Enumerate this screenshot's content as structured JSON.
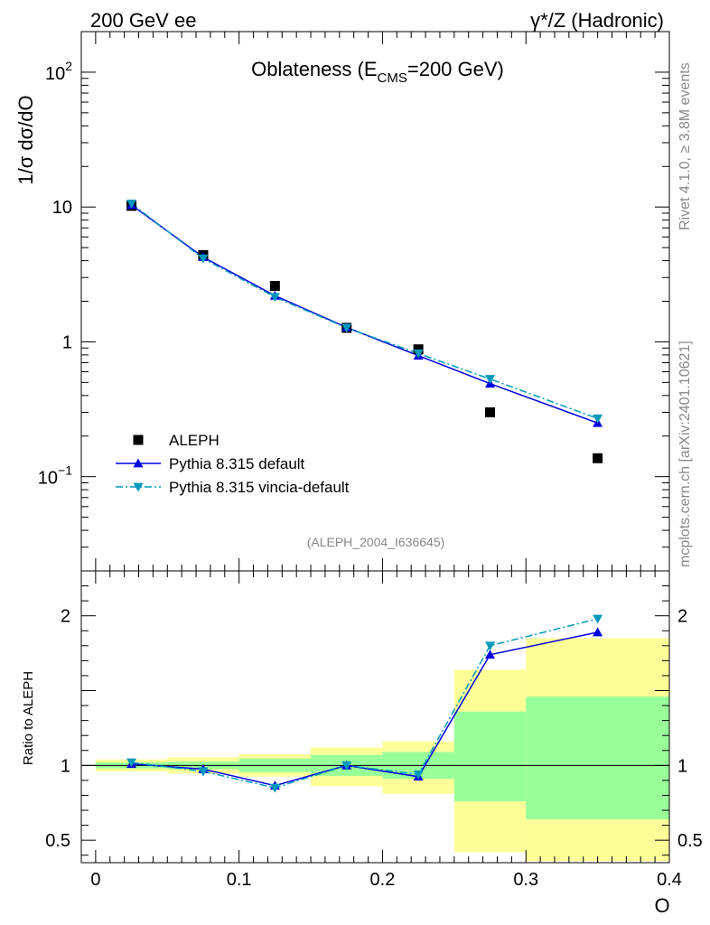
{
  "header": {
    "left": "200 GeV ee",
    "right": "γ*/Z (Hadronic)"
  },
  "side_texts": {
    "rivet": "Rivet 4.1.0, ≥ 3.8M events",
    "mcplots": "mcplots.cern.ch [arXiv:2401.10621]"
  },
  "chart_data": [
    {
      "type": "line",
      "panel": "main",
      "title": "Oblateness (E",
      "title_sub": "CMS",
      "title_tail": "=200 GeV)",
      "ylabel": "1/σ  dσ/dO",
      "yscale": "log",
      "ylim": [
        0.02,
        200
      ],
      "xlim": [
        -0.01,
        0.4
      ],
      "yticks": [
        {
          "value": 100,
          "label": "10",
          "sup": "2"
        },
        {
          "value": 10,
          "label": "10",
          "sup": ""
        },
        {
          "value": 1,
          "label": "1",
          "sup": ""
        },
        {
          "value": 0.1,
          "label": "10",
          "sup": "−1"
        }
      ],
      "analysis_label": "(ALEPH_2004_I636645)",
      "x": [
        0.025,
        0.075,
        0.125,
        0.175,
        0.225,
        0.275,
        0.35
      ],
      "series": [
        {
          "name": "ALEPH",
          "style": "data",
          "color": "#000000",
          "values": [
            10.2,
            4.4,
            2.6,
            1.27,
            0.88,
            0.3,
            0.137
          ]
        },
        {
          "name": "Pythia 8.315 default",
          "style": "solid",
          "marker": "triangle-up",
          "color": "#0000dd",
          "values": [
            10.35,
            4.25,
            2.2,
            1.28,
            0.79,
            0.49,
            0.25
          ]
        },
        {
          "name": "Pythia 8.315 vincia-default",
          "style": "dashdot",
          "marker": "triangle-down",
          "color": "#0099bb",
          "values": [
            10.6,
            4.15,
            2.15,
            1.27,
            0.82,
            0.53,
            0.27
          ]
        }
      ]
    },
    {
      "type": "line",
      "panel": "ratio",
      "ylabel": "Ratio to ALEPH",
      "ylim": [
        0.35,
        2.3
      ],
      "xlim": [
        -0.01,
        0.4
      ],
      "yticks": [
        {
          "value": 0.5,
          "label": "0.5"
        },
        {
          "value": 1,
          "label": "1"
        },
        {
          "value": 2,
          "label": "2"
        }
      ],
      "xticks": [
        {
          "value": 0,
          "label": "0"
        },
        {
          "value": 0.1,
          "label": "0.1"
        },
        {
          "value": 0.2,
          "label": "0.2"
        },
        {
          "value": 0.3,
          "label": "0.3"
        },
        {
          "value": 0.4,
          "label": "0.4"
        }
      ],
      "xlabel": "O",
      "bins": [
        {
          "lo": 0.0,
          "hi": 0.05,
          "stat_lo": 0.98,
          "stat_hi": 1.02,
          "tot_lo": 0.96,
          "tot_hi": 1.04
        },
        {
          "lo": 0.05,
          "hi": 0.1,
          "stat_lo": 0.975,
          "stat_hi": 1.025,
          "tot_lo": 0.945,
          "tot_hi": 1.055
        },
        {
          "lo": 0.1,
          "hi": 0.15,
          "stat_lo": 0.955,
          "stat_hi": 1.045,
          "tot_lo": 0.925,
          "tot_hi": 1.075
        },
        {
          "lo": 0.15,
          "hi": 0.2,
          "stat_lo": 0.93,
          "stat_hi": 1.07,
          "tot_lo": 0.86,
          "tot_hi": 1.12
        },
        {
          "lo": 0.2,
          "hi": 0.25,
          "stat_lo": 0.91,
          "stat_hi": 1.09,
          "tot_lo": 0.81,
          "tot_hi": 1.16
        },
        {
          "lo": 0.25,
          "hi": 0.3,
          "stat_lo": 0.76,
          "stat_hi": 1.36,
          "tot_lo": 0.42,
          "tot_hi": 1.64
        },
        {
          "lo": 0.3,
          "hi": 0.4,
          "stat_lo": 0.64,
          "stat_hi": 1.46,
          "tot_lo": 0.36,
          "tot_hi": 1.85
        }
      ],
      "x": [
        0.025,
        0.075,
        0.125,
        0.175,
        0.225,
        0.275,
        0.35
      ],
      "series": [
        {
          "name": "Pythia 8.315 default",
          "style": "solid",
          "marker": "triangle-up",
          "color": "#0000dd",
          "values": [
            1.01,
            0.975,
            0.865,
            1.0,
            0.925,
            1.74,
            1.89
          ]
        },
        {
          "name": "Pythia 8.315 vincia-default",
          "style": "dashdot",
          "marker": "triangle-down",
          "color": "#0099bb",
          "values": [
            1.02,
            0.96,
            0.85,
            1.0,
            0.94,
            1.8,
            1.98
          ]
        }
      ],
      "band_colors": {
        "stat": "#99ff99",
        "total": "#ffff99"
      }
    }
  ]
}
